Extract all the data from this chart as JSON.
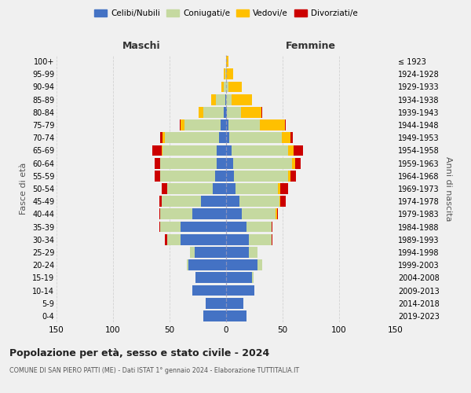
{
  "age_groups": [
    "0-4",
    "5-9",
    "10-14",
    "15-19",
    "20-24",
    "25-29",
    "30-34",
    "35-39",
    "40-44",
    "45-49",
    "50-54",
    "55-59",
    "60-64",
    "65-69",
    "70-74",
    "75-79",
    "80-84",
    "85-89",
    "90-94",
    "95-99",
    "100+"
  ],
  "birth_years": [
    "2019-2023",
    "2014-2018",
    "2009-2013",
    "2004-2008",
    "1999-2003",
    "1994-1998",
    "1989-1993",
    "1984-1988",
    "1979-1983",
    "1974-1978",
    "1969-1973",
    "1964-1968",
    "1959-1963",
    "1954-1958",
    "1949-1953",
    "1944-1948",
    "1939-1943",
    "1934-1938",
    "1929-1933",
    "1924-1928",
    "≤ 1923"
  ],
  "male": {
    "celibi": [
      20,
      18,
      30,
      27,
      33,
      28,
      40,
      40,
      30,
      22,
      12,
      10,
      8,
      8,
      6,
      5,
      2,
      1,
      0,
      0,
      0
    ],
    "coniugati": [
      0,
      0,
      0,
      0,
      2,
      4,
      12,
      18,
      28,
      35,
      40,
      48,
      50,
      48,
      48,
      32,
      18,
      8,
      2,
      1,
      0
    ],
    "vedovi": [
      0,
      0,
      0,
      0,
      0,
      0,
      0,
      0,
      0,
      0,
      0,
      0,
      0,
      1,
      2,
      3,
      4,
      4,
      2,
      1,
      0
    ],
    "divorziati": [
      0,
      0,
      0,
      0,
      0,
      0,
      2,
      1,
      1,
      2,
      5,
      5,
      5,
      8,
      2,
      1,
      0,
      0,
      0,
      0,
      0
    ]
  },
  "female": {
    "nubili": [
      18,
      15,
      25,
      23,
      28,
      20,
      20,
      18,
      14,
      12,
      8,
      7,
      6,
      5,
      3,
      2,
      1,
      0,
      0,
      0,
      0
    ],
    "coniugate": [
      0,
      0,
      0,
      1,
      4,
      8,
      20,
      22,
      30,
      35,
      38,
      48,
      52,
      50,
      46,
      28,
      12,
      5,
      2,
      0,
      0
    ],
    "vedove": [
      0,
      0,
      0,
      0,
      0,
      0,
      0,
      0,
      1,
      1,
      2,
      2,
      3,
      5,
      8,
      22,
      18,
      18,
      12,
      6,
      2
    ],
    "divorziate": [
      0,
      0,
      0,
      0,
      0,
      0,
      1,
      1,
      1,
      5,
      7,
      5,
      5,
      8,
      2,
      1,
      1,
      0,
      0,
      0,
      0
    ]
  },
  "colors": {
    "celibi": "#4472c4",
    "coniugati": "#c5d9a0",
    "vedovi": "#ffc000",
    "divorziati": "#cc0000"
  },
  "title": "Popolazione per età, sesso e stato civile - 2024",
  "subtitle": "COMUNE DI SAN PIERO PATTI (ME) - Dati ISTAT 1° gennaio 2024 - Elaborazione TUTTITALIA.IT",
  "xlabel_left": "Maschi",
  "xlabel_right": "Femmine",
  "ylabel_left": "Fasce di età",
  "ylabel_right": "Anni di nascita",
  "xlim": 150,
  "xticks": [
    -150,
    -100,
    -50,
    0,
    50,
    100,
    150
  ],
  "legend_labels": [
    "Celibi/Nubili",
    "Coniugati/e",
    "Vedovi/e",
    "Divorziati/e"
  ],
  "background_color": "#f0f0f0",
  "grid_color": "#cccccc"
}
